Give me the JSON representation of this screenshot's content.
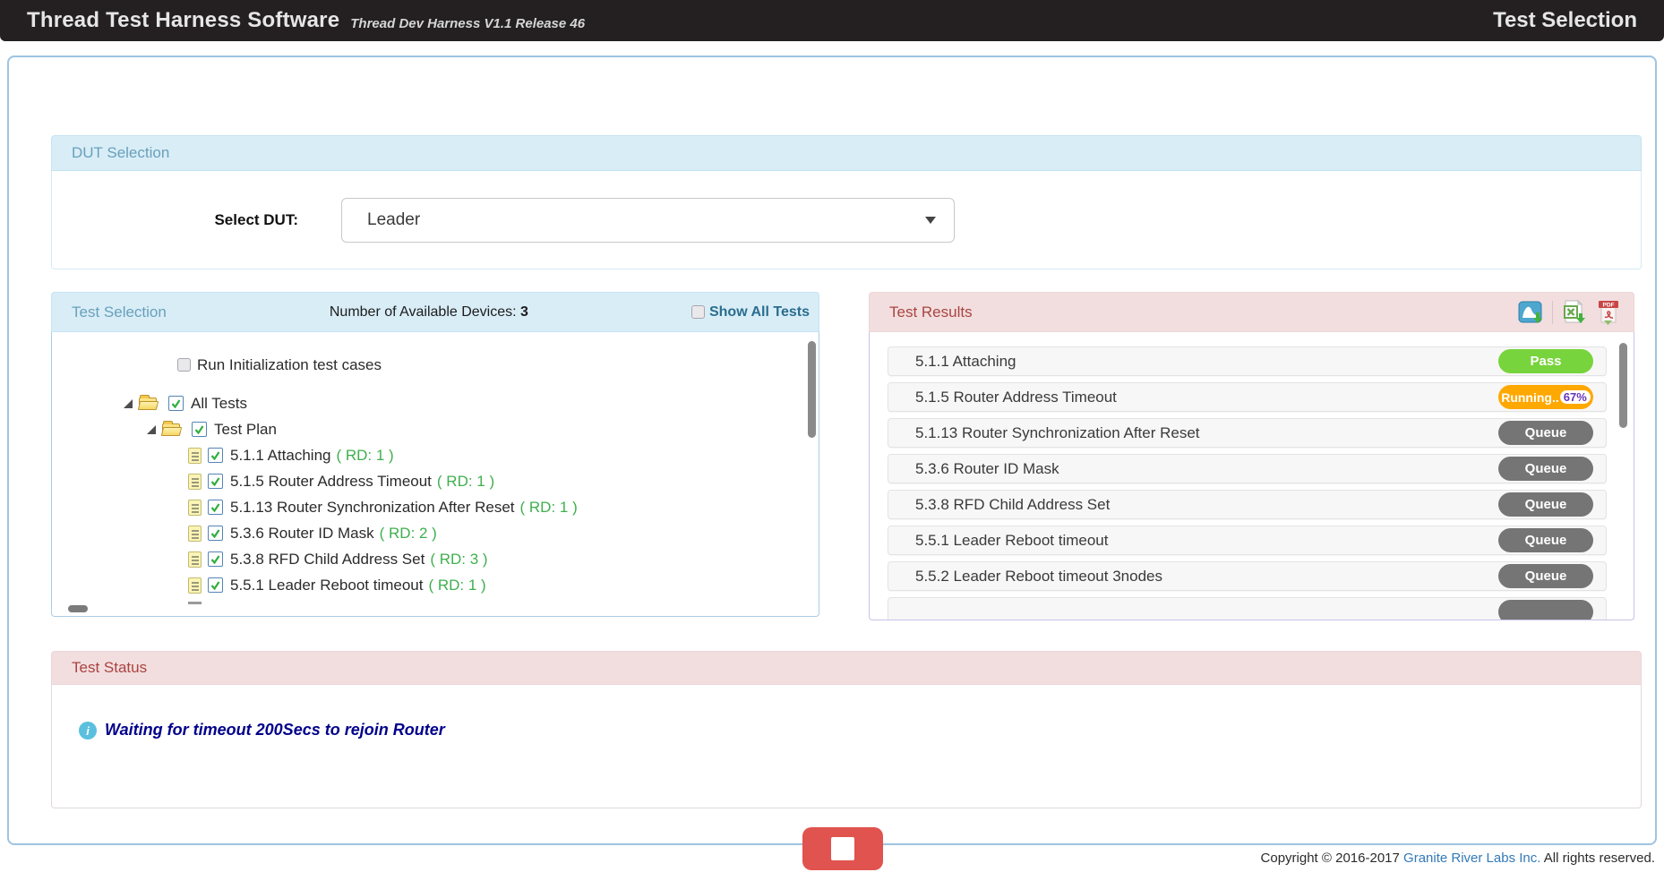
{
  "header": {
    "title": "Thread Test Harness Software",
    "subtitle": "Thread Dev Harness V1.1 Release 46",
    "page_label": "Test Selection"
  },
  "dut_selection": {
    "panel_title": "DUT Selection",
    "select_label": "Select DUT:",
    "selected_value": "Leader"
  },
  "test_selection": {
    "panel_title": "Test Selection",
    "devices_label": "Number of Available Devices:",
    "devices_count": "3",
    "show_all_label": "Show All Tests",
    "show_all_checked": false,
    "init_checkbox_label": "Run Initialization test cases",
    "init_checkbox_checked": false,
    "tree": {
      "root_label": "All Tests",
      "group_label": "Test Plan",
      "items": [
        {
          "name": "5.1.1 Attaching",
          "rd": "( RD: 1 )",
          "checked": true
        },
        {
          "name": "5.1.5 Router Address Timeout",
          "rd": "( RD: 1 )",
          "checked": true
        },
        {
          "name": "5.1.13 Router Synchronization After Reset",
          "rd": "( RD: 1 )",
          "checked": true
        },
        {
          "name": "5.3.6 Router ID Mask",
          "rd": "( RD: 2 )",
          "checked": true
        },
        {
          "name": "5.3.8 RFD Child Address Set",
          "rd": "( RD: 3 )",
          "checked": true
        },
        {
          "name": "5.5.1 Leader Reboot timeout",
          "rd": "( RD: 1 )",
          "checked": true
        }
      ]
    }
  },
  "test_results": {
    "panel_title": "Test Results",
    "icons": [
      "wireshark-capture-download-icon",
      "excel-export-icon",
      "pdf-export-icon"
    ],
    "rows": [
      {
        "name": "5.1.1 Attaching",
        "status": "Pass",
        "type": "pass"
      },
      {
        "name": "5.1.5 Router Address Timeout",
        "status": "Running..",
        "progress": "67%",
        "type": "running"
      },
      {
        "name": "5.1.13 Router Synchronization After Reset",
        "status": "Queue",
        "type": "queue"
      },
      {
        "name": "5.3.6 Router ID Mask",
        "status": "Queue",
        "type": "queue"
      },
      {
        "name": "5.3.8 RFD Child Address Set",
        "status": "Queue",
        "type": "queue"
      },
      {
        "name": "5.5.1 Leader Reboot timeout",
        "status": "Queue",
        "type": "queue"
      },
      {
        "name": "5.5.2 Leader Reboot timeout 3nodes",
        "status": "Queue",
        "type": "queue"
      }
    ]
  },
  "test_status": {
    "panel_title": "Test Status",
    "message": "Waiting for timeout 200Secs to rejoin Router"
  },
  "colors": {
    "pass_badge": "#77d43c",
    "running_badge": "#ffa800",
    "queue_badge": "#757575",
    "stop_button": "#e0534e",
    "status_message": "#00008b",
    "info_header_bg": "#d9edf7",
    "danger_header_bg": "#f2dede"
  },
  "footer": {
    "copyright_prefix": "Copyright © 2016-2017 ",
    "company_link": "Granite River Labs Inc.",
    "copyright_suffix": " All rights reserved."
  }
}
